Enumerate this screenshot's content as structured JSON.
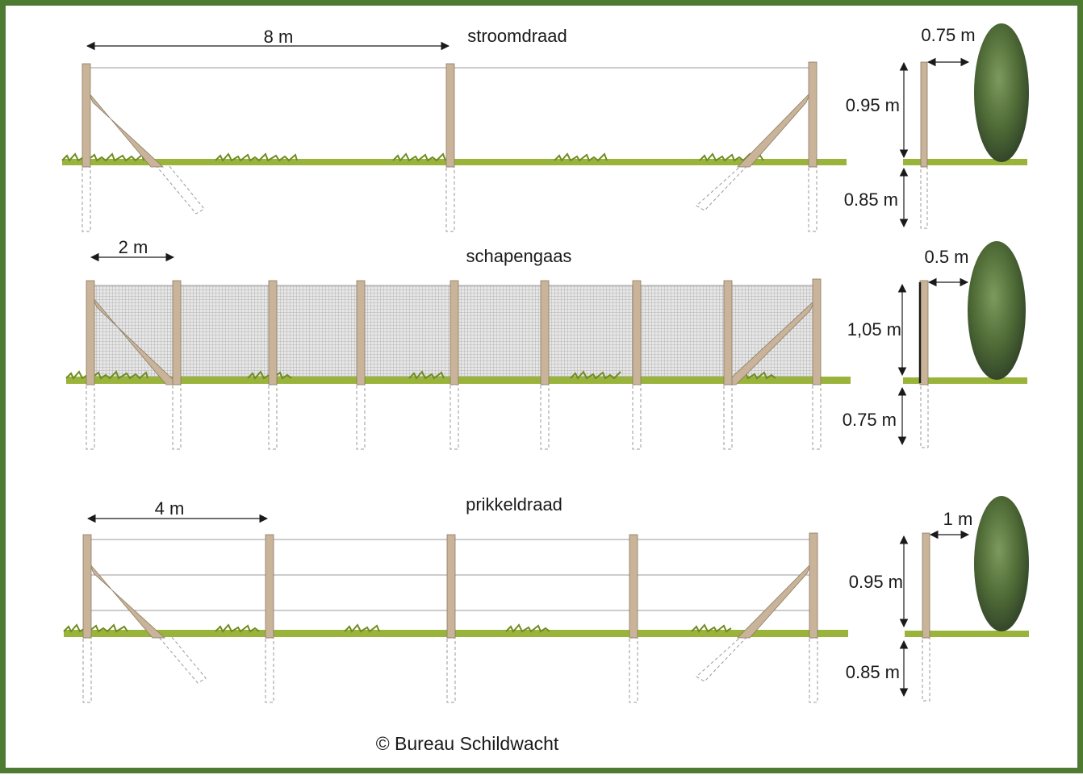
{
  "colors": {
    "frame": "#4e7a32",
    "post": "#c9b49a",
    "post_edge": "#8c7a64",
    "grass": "#9ab33a",
    "grass_dark": "#6f8c22",
    "wire": "#9a9a9a",
    "mesh": "#b4b4b4",
    "shrub": "#4f6b36"
  },
  "fences": [
    {
      "title": "stroomdraad",
      "spacing_label": "8 m",
      "height_above": "0.95 m",
      "depth_below": "0.85 m",
      "offset": "0.75 m",
      "wire_rows": 1,
      "post_count": 3
    },
    {
      "title": "schapengaas",
      "spacing_label": "2 m",
      "height_above": "1,05 m",
      "depth_below": "0.75 m",
      "offset": "0.5 m",
      "wire_rows": 0,
      "post_count": 9
    },
    {
      "title": "prikkeldraad",
      "spacing_label": "4 m",
      "height_above": "0.95 m",
      "depth_below": "0.85 m",
      "offset": "1 m",
      "wire_rows": 3,
      "post_count": 5
    }
  ],
  "copyright": "©  Bureau Schildwacht"
}
